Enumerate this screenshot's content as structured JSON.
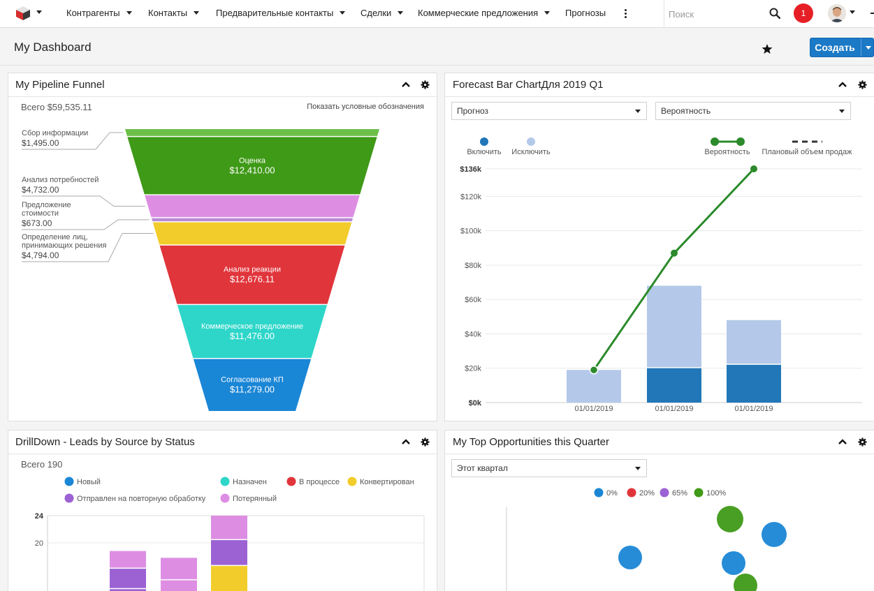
{
  "nav": {
    "items": [
      {
        "label": "Контрагенты",
        "caret": true
      },
      {
        "label": "Контакты",
        "caret": true
      },
      {
        "label": "Предварительные контакты",
        "caret": true
      },
      {
        "label": "Сделки",
        "caret": true
      },
      {
        "label": "Коммерческие предложения",
        "caret": true
      },
      {
        "label": "Прогнозы",
        "caret": false
      }
    ],
    "search_placeholder": "Поиск",
    "notification_count": "1"
  },
  "header": {
    "title": "My Dashboard",
    "create_label": "Создать"
  },
  "colors": {
    "primary": "#1b79c6",
    "notification": "#e61f26"
  },
  "funnel": {
    "title": "My Pipeline Funnel",
    "total": "Всего $59,535.11",
    "legend_toggle": "Показать условные обозначения",
    "stages": [
      {
        "name": "Сбор информации",
        "amount": "$1,495.00",
        "value": 1495.0,
        "color": "#6cc04a"
      },
      {
        "name": "Оценка",
        "amount": "$12,410.00",
        "value": 12410.0,
        "color": "#3f9a17"
      },
      {
        "name": "Анализ потребностей",
        "amount": "$4,732.00",
        "value": 4732.0,
        "color": "#dd8ee3"
      },
      {
        "name": "Предложение стоимости",
        "amount": "$673.00",
        "value": 673.0,
        "color": "#b98ad6"
      },
      {
        "name": "Определение лиц, принимающих решения",
        "amount": "$4,794.00",
        "value": 4794.0,
        "color": "#f2cc2a"
      },
      {
        "name": "Анализ реакции",
        "amount": "$12,676.11",
        "value": 12676.11,
        "color": "#e0353b"
      },
      {
        "name": "Коммерческое предложение",
        "amount": "$11,476.00",
        "value": 11476.0,
        "color": "#2ed6c9"
      },
      {
        "name": "Согласование КП",
        "amount": "$11,279.00",
        "value": 11279.0,
        "color": "#1a86d6"
      }
    ],
    "side_labels": [
      {
        "line1": "Сбор информации",
        "line2": "",
        "amount": "$1,495.00"
      },
      {
        "line1": "Анализ потребностей",
        "line2": "",
        "amount": "$4,732.00"
      },
      {
        "line1": "Предложение",
        "line2": "стоимости",
        "amount": "$673.00"
      },
      {
        "line1": "Определение лиц,",
        "line2": "принимающих решения",
        "amount": "$4,794.00"
      }
    ]
  },
  "forecast": {
    "title": "Forecast Bar ChartДля 2019 Q1",
    "select_left": "Прогноз",
    "select_right": "Вероятность",
    "legend": {
      "include": "Включить",
      "exclude": "Исключить",
      "probability": "Вероятность",
      "plan": "Плановый объем продаж"
    }
  },
  "drilldown": {
    "title": "DrillDown - Leads by Source by Status",
    "total": "Всего 190",
    "legend": [
      {
        "label": "Новый",
        "color": "#1a86d6"
      },
      {
        "label": "Назначен",
        "color": "#2ed6c9"
      },
      {
        "label": "В процессе",
        "color": "#e0353b"
      },
      {
        "label": "Конвертирован",
        "color": "#f2cc2a"
      },
      {
        "label": "Отправлен на повторную обработку",
        "color": "#9c62d4"
      },
      {
        "label": "Потерянный",
        "color": "#dd8ee3"
      }
    ]
  },
  "opps": {
    "title": "My Top Opportunities this Quarter",
    "select": "Этот квартал",
    "legend": [
      {
        "label": "0%",
        "color": "#1a86d6"
      },
      {
        "label": "20%",
        "color": "#e0353b"
      },
      {
        "label": "65%",
        "color": "#9c62d4"
      },
      {
        "label": "100%",
        "color": "#3f9a17"
      }
    ]
  },
  "chart_data": [
    {
      "type": "bar",
      "title": "Forecast Bar ChartДля 2019 Q1",
      "categories": [
        "01/01/2019",
        "01/01/2019",
        "01/01/2019"
      ],
      "series": [
        {
          "name": "Включить",
          "values": [
            0,
            20000,
            22000
          ],
          "color": "#2277b8"
        },
        {
          "name": "Исключить",
          "values": [
            19000,
            48000,
            26000
          ],
          "color": "#b4c9ea"
        },
        {
          "name": "Вероятность",
          "type": "line",
          "values": [
            19000,
            87000,
            136000
          ],
          "color": "#2b8a2b"
        }
      ],
      "y_ticks": [
        "$0k",
        "$20k",
        "$40k",
        "$60k",
        "$80k",
        "$100k",
        "$120k",
        "$136k"
      ],
      "ylim": [
        0,
        136000
      ],
      "legend_position": "top"
    },
    {
      "type": "bar",
      "title": "DrillDown - Leads by Source by Status",
      "categories": [
        "",
        "",
        ""
      ],
      "series": [
        {
          "name": "Отправлен на повторную обработку",
          "values": [
            3,
            0,
            3
          ]
        },
        {
          "name": "Потерянный",
          "values": [
            2,
            4,
            3
          ]
        },
        {
          "name": "Конвертирован",
          "values": [
            0,
            0,
            5
          ]
        }
      ],
      "y_ticks": [
        "20",
        "24"
      ],
      "ylim": [
        0,
        24
      ],
      "legend_position": "top"
    },
    {
      "type": "scatter",
      "title": "My Top Opportunities this Quarter",
      "series": [
        {
          "name": "0%",
          "points": [
            [
              0.3,
              0.55
            ],
            [
              0.62,
              0.55
            ],
            [
              0.74,
              0.74
            ]
          ]
        },
        {
          "name": "100%",
          "points": [
            [
              0.62,
              0.82
            ],
            [
              0.64,
              0.3
            ]
          ]
        }
      ],
      "legend_position": "top"
    }
  ]
}
